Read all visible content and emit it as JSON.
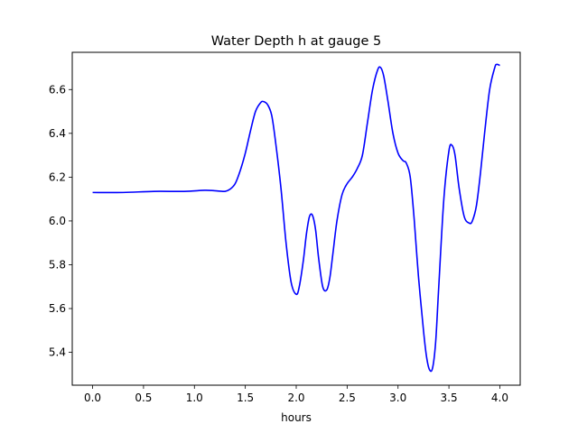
{
  "chart_data": {
    "type": "line",
    "title": "Water Depth h at gauge 5",
    "xlabel": "hours",
    "ylabel": "",
    "xlim": [
      -0.2,
      4.2
    ],
    "ylim": [
      5.25,
      6.77
    ],
    "xticks": [
      0.0,
      0.5,
      1.0,
      1.5,
      2.0,
      2.5,
      3.0,
      3.5,
      4.0
    ],
    "xtick_labels": [
      "0.0",
      "0.5",
      "1.0",
      "1.5",
      "2.0",
      "2.5",
      "3.0",
      "3.5",
      "4.0"
    ],
    "yticks": [
      5.4,
      5.6,
      5.8,
      6.0,
      6.2,
      6.4,
      6.6
    ],
    "ytick_labels": [
      "5.4",
      "5.6",
      "5.8",
      "6.0",
      "6.2",
      "6.4",
      "6.6"
    ],
    "grid": false,
    "series": [
      {
        "color": "#0000ff",
        "x": [
          0.0,
          0.3,
          0.6,
          0.9,
          1.1,
          1.2,
          1.3,
          1.35,
          1.4,
          1.45,
          1.5,
          1.55,
          1.6,
          1.65,
          1.68,
          1.72,
          1.76,
          1.8,
          1.85,
          1.9,
          1.95,
          2.0,
          2.03,
          2.07,
          2.1,
          2.13,
          2.16,
          2.19,
          2.22,
          2.26,
          2.3,
          2.33,
          2.36,
          2.4,
          2.45,
          2.5,
          2.55,
          2.6,
          2.65,
          2.7,
          2.75,
          2.8,
          2.83,
          2.86,
          2.9,
          2.95,
          3.0,
          3.05,
          3.08,
          3.12,
          3.16,
          3.2,
          3.25,
          3.28,
          3.31,
          3.34,
          3.37,
          3.4,
          3.45,
          3.5,
          3.53,
          3.56,
          3.6,
          3.65,
          3.7,
          3.73,
          3.77,
          3.81,
          3.85,
          3.9,
          3.95,
          3.97,
          4.0
        ],
        "y": [
          6.13,
          6.13,
          6.135,
          6.135,
          6.14,
          6.138,
          6.135,
          6.145,
          6.17,
          6.23,
          6.31,
          6.41,
          6.5,
          6.54,
          6.545,
          6.53,
          6.48,
          6.35,
          6.15,
          5.9,
          5.72,
          5.665,
          5.7,
          5.82,
          5.94,
          6.02,
          6.025,
          5.96,
          5.83,
          5.7,
          5.685,
          5.74,
          5.85,
          6.0,
          6.12,
          6.17,
          6.2,
          6.24,
          6.3,
          6.45,
          6.6,
          6.69,
          6.7,
          6.66,
          6.55,
          6.4,
          6.31,
          6.275,
          6.265,
          6.2,
          6.0,
          5.75,
          5.5,
          5.38,
          5.32,
          5.33,
          5.45,
          5.7,
          6.1,
          6.32,
          6.345,
          6.3,
          6.15,
          6.02,
          5.99,
          6.0,
          6.07,
          6.22,
          6.4,
          6.6,
          6.7,
          6.715,
          6.71
        ]
      }
    ]
  }
}
